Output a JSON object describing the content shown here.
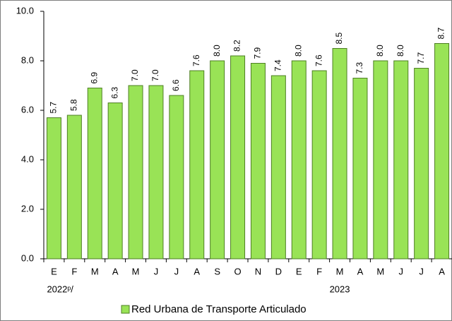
{
  "chart_data": {
    "type": "bar",
    "categories": [
      "E",
      "F",
      "M",
      "A",
      "M",
      "J",
      "J",
      "A",
      "S",
      "O",
      "N",
      "D",
      "E",
      "F",
      "M",
      "A",
      "M",
      "J",
      "J",
      "A"
    ],
    "years": [
      "2022ᵖ/",
      null,
      null,
      null,
      null,
      null,
      null,
      null,
      null,
      null,
      null,
      null,
      null,
      null,
      "2023",
      null,
      null,
      null,
      null,
      null
    ],
    "series": [
      {
        "name": "Red Urbana de Transporte Articulado",
        "color": "#99e356",
        "values": [
          5.7,
          5.8,
          6.9,
          6.3,
          7.0,
          7.0,
          6.6,
          7.6,
          8.0,
          8.2,
          7.9,
          7.4,
          8.0,
          7.6,
          8.5,
          7.3,
          8.0,
          8.0,
          7.7,
          8.7
        ],
        "value_labels": [
          "5.7",
          "5.8",
          "6.9",
          "6.3",
          "7.0",
          "7.0",
          "6.6",
          "7.6",
          "8.0",
          "8.2",
          "7.9",
          "7.4",
          "8.0",
          "7.6",
          "8.5",
          "7.3",
          "8.0",
          "8.0",
          "7.7",
          "8.7"
        ]
      }
    ],
    "ylim": [
      0,
      10
    ],
    "yticks": [
      {
        "value": 0,
        "label": "0.0"
      },
      {
        "value": 2,
        "label": "2.0"
      },
      {
        "value": 4,
        "label": "4.0"
      },
      {
        "value": 6,
        "label": "6.0"
      },
      {
        "value": 8,
        "label": "8.0"
      },
      {
        "value": 10,
        "label": "10.0"
      }
    ],
    "legend": "bottom"
  }
}
